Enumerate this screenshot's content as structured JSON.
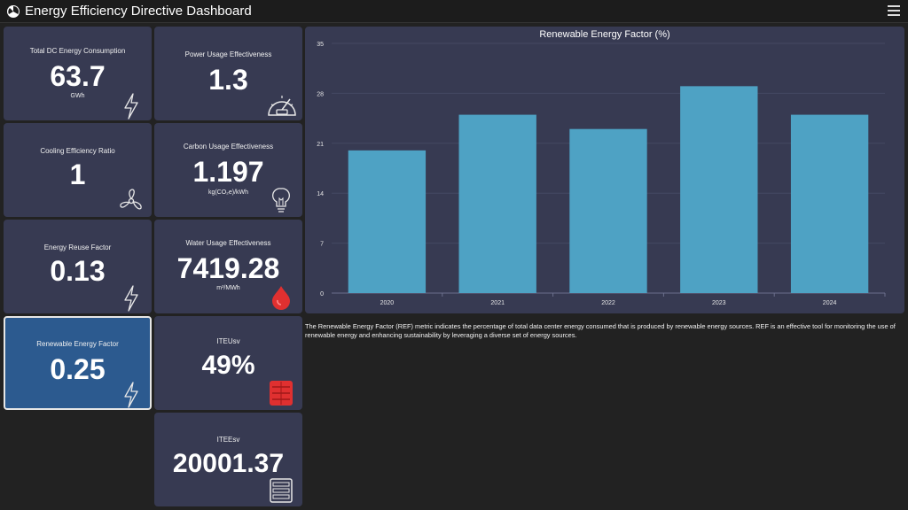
{
  "app": {
    "title": "Energy Efficiency Directive Dashboard"
  },
  "cards": [
    {
      "id": "total-dc-energy",
      "label": "Total DC Energy Consumption",
      "value": "63.7",
      "unit": "GWh",
      "icon": "lightning-icon"
    },
    {
      "id": "pue",
      "label": "Power Usage Effectiveness",
      "value": "1.3",
      "unit": "",
      "icon": "gauge-icon"
    },
    {
      "id": "cer",
      "label": "Cooling Efficiency Ratio",
      "value": "1",
      "unit": "",
      "icon": "fan-icon"
    },
    {
      "id": "cue",
      "label": "Carbon Usage Effectiveness",
      "value": "1.197",
      "unit": "kg(CO₂e)/kWh",
      "icon": "lightbulb-icon"
    },
    {
      "id": "erf",
      "label": "Energy Reuse Factor",
      "value": "0.13",
      "unit": "",
      "icon": "lightning-icon"
    },
    {
      "id": "wue",
      "label": "Water Usage Effectiveness",
      "value": "7419.28",
      "unit": "m³/MWh",
      "icon": "water-drop-icon"
    },
    {
      "id": "ref",
      "label": "Renewable Energy Factor",
      "value": "0.25",
      "unit": "",
      "icon": "lightning-icon",
      "selected": true
    },
    {
      "id": "iteusv",
      "label": "ITEUsv",
      "value": "49%",
      "unit": "",
      "icon": "server-rack-icon"
    },
    {
      "id": "iteesv",
      "label": "ITEEsv",
      "value": "20001.37",
      "unit": "",
      "icon": "server-icon"
    }
  ],
  "chart_data": {
    "type": "bar",
    "title": "Renewable Energy Factor (%)",
    "categories": [
      "2020",
      "2021",
      "2022",
      "2023",
      "2024"
    ],
    "values": [
      20,
      25,
      23,
      29,
      25
    ],
    "ylim": [
      0,
      35
    ],
    "yticks": [
      "0",
      "7",
      "14",
      "21",
      "28",
      "35"
    ],
    "xlabel": "",
    "ylabel": "",
    "grid": true,
    "bar_color": "#4ea2c4"
  },
  "description": "The Renewable Energy Factor (REF) metric indicates the percentage of total data center energy consumed that is produced by renewable energy sources. REF is an effective tool for monitoring the use of renewable energy and enhancing sustainability by leveraging a diverse set of energy sources.",
  "colors": {
    "background": "#222222",
    "card": "#373a52",
    "card_selected": "#2c5a8f",
    "accent_red": "#e03030",
    "bar": "#4ea2c4"
  }
}
